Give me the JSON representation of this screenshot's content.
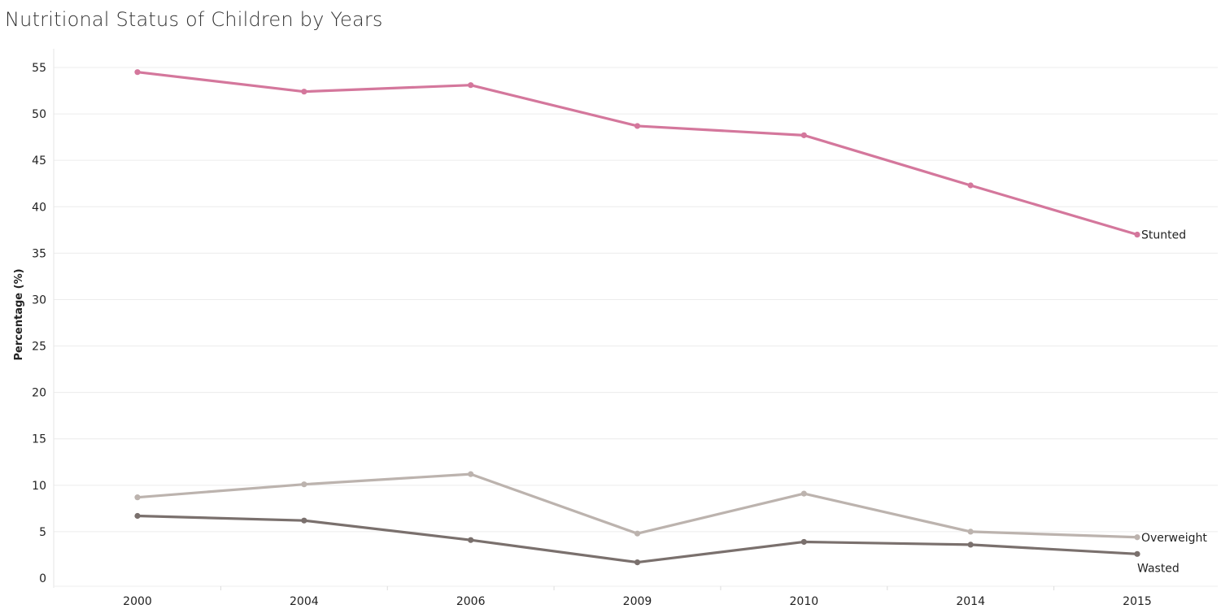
{
  "chart_data": {
    "type": "line",
    "title": "Nutritional Status of Children by Years",
    "xlabel": "",
    "ylabel": "Percentage (%)",
    "categories": [
      "2000",
      "2004",
      "2006",
      "2009",
      "2010",
      "2014",
      "2015"
    ],
    "ylim": [
      0,
      55
    ],
    "yticks": [
      0,
      5,
      10,
      15,
      20,
      25,
      30,
      35,
      40,
      45,
      50,
      55
    ],
    "grid": true,
    "legend": "none",
    "series": [
      {
        "name": "Stunted",
        "color": "#d4779c",
        "values": [
          54.5,
          52.4,
          53.1,
          48.7,
          47.7,
          42.3,
          37.0
        ]
      },
      {
        "name": "Overweight",
        "color": "#bcb3ae",
        "values": [
          8.7,
          10.1,
          11.2,
          4.8,
          9.1,
          5.0,
          4.4
        ]
      },
      {
        "name": "Wasted",
        "color": "#7a706d",
        "values": [
          6.7,
          6.2,
          4.1,
          1.7,
          3.9,
          3.6,
          2.6
        ]
      }
    ]
  }
}
